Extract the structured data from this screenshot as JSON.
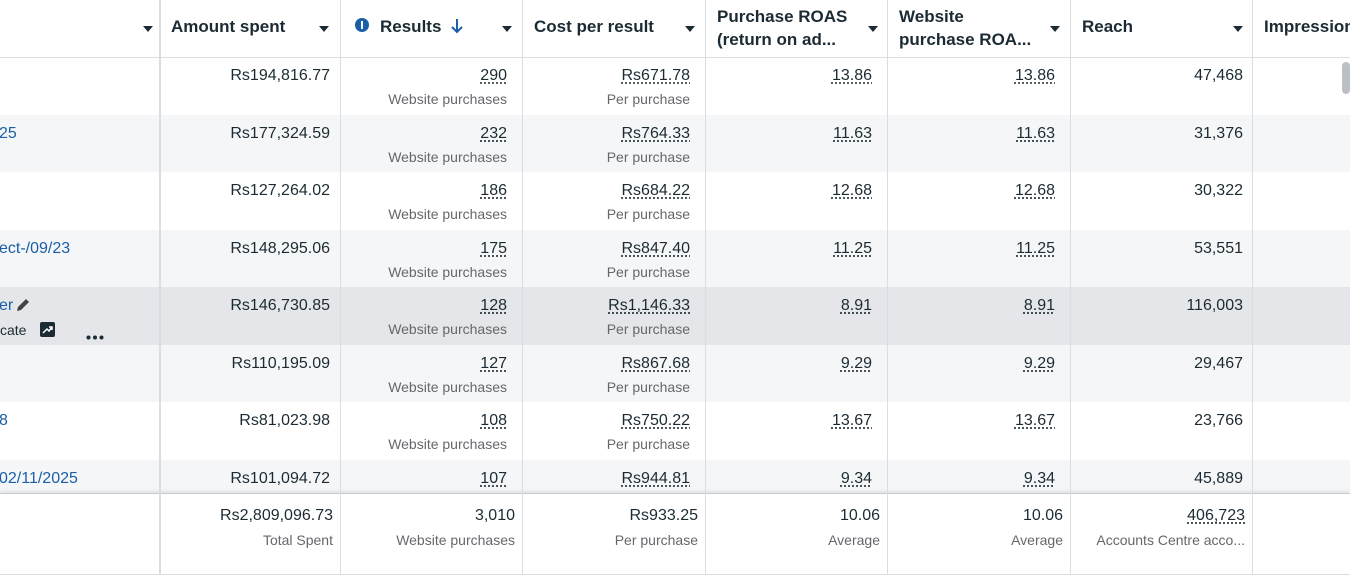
{
  "table": {
    "columns": [
      {
        "lines": [
          "Amount spent"
        ]
      },
      {
        "lines": [
          "Results"
        ]
      },
      {
        "lines": [
          "Cost per result"
        ]
      },
      {
        "lines": [
          "Purchase ROAS",
          "(return on ad..."
        ]
      },
      {
        "lines": [
          "Website",
          "purchase ROA..."
        ]
      },
      {
        "lines": [
          "Reach"
        ]
      },
      {
        "lines": [
          "Impressions"
        ]
      }
    ],
    "rows": [
      {
        "amount": "Rs194,816.77",
        "results": "290",
        "results_unit": "Website purchases",
        "cost": "Rs671.78",
        "cost_unit": "Per purchase",
        "roas": "13.86",
        "web_roas": "13.86",
        "reach": "47,468"
      },
      {
        "name": "25",
        "amount": "Rs177,324.59",
        "results": "232",
        "results_unit": "Website purchases",
        "cost": "Rs764.33",
        "cost_unit": "Per purchase",
        "roas": "11.63",
        "web_roas": "11.63",
        "reach": "31,376"
      },
      {
        "amount": "Rs127,264.02",
        "results": "186",
        "results_unit": "Website purchases",
        "cost": "Rs684.22",
        "cost_unit": "Per purchase",
        "roas": "12.68",
        "web_roas": "12.68",
        "reach": "30,322"
      },
      {
        "name": "ect-/09/23",
        "amount": "Rs148,295.06",
        "results": "175",
        "results_unit": "Website purchases",
        "cost": "Rs847.40",
        "cost_unit": "Per purchase",
        "roas": "11.25",
        "web_roas": "11.25",
        "reach": "53,551"
      },
      {
        "name": "er",
        "action": "cate",
        "amount": "Rs146,730.85",
        "results": "128",
        "results_unit": "Website purchases",
        "cost": "Rs1,146.33",
        "cost_unit": "Per purchase",
        "roas": "8.91",
        "web_roas": "8.91",
        "reach": "116,003"
      },
      {
        "amount": "Rs110,195.09",
        "results": "127",
        "results_unit": "Website purchases",
        "cost": "Rs867.68",
        "cost_unit": "Per purchase",
        "roas": "9.29",
        "web_roas": "9.29",
        "reach": "29,467"
      },
      {
        "name": "8",
        "amount": "Rs81,023.98",
        "results": "108",
        "results_unit": "Website purchases",
        "cost": "Rs750.22",
        "cost_unit": "Per purchase",
        "roas": "13.67",
        "web_roas": "13.67",
        "reach": "23,766"
      },
      {
        "name": "02/11/2025",
        "amount": "Rs101,094.72",
        "results": "107",
        "results_unit": "Website purchases",
        "cost": "Rs944.81",
        "cost_unit": "Per purchase",
        "roas": "9.34",
        "web_roas": "9.34",
        "reach": "45,889"
      }
    ],
    "footer": {
      "amount": "Rs2,809,096.73",
      "amount_note": "Total Spent",
      "results": "3,010",
      "results_unit": "Website purchases",
      "cost": "Rs933.25",
      "cost_unit": "Per purchase",
      "roas": "10.06",
      "roas_note": "Average",
      "web_roas": "10.06",
      "web_roas_note": "Average",
      "reach": "406,723",
      "reach_note": "Accounts Centre acco..."
    }
  }
}
